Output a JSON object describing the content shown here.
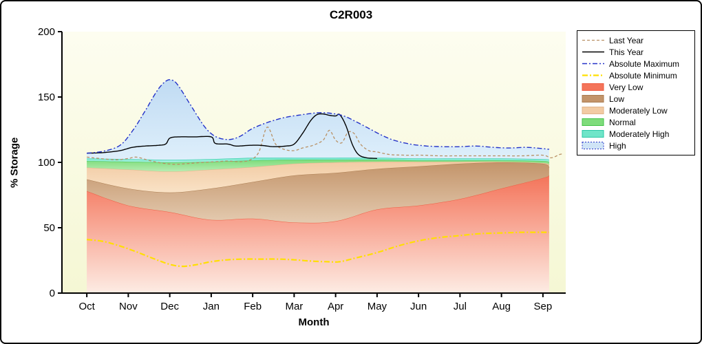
{
  "chart_data": {
    "type": "area",
    "title": "C2R003",
    "xlabel": "Month",
    "ylabel": "% Storage",
    "ylim": [
      0,
      200
    ],
    "yticks": [
      0,
      50,
      100,
      150,
      200
    ],
    "categories": [
      "Oct",
      "Nov",
      "Dec",
      "Jan",
      "Feb",
      "Mar",
      "Apr",
      "May",
      "Jun",
      "Jul",
      "Aug",
      "Sep"
    ],
    "x_domain": [
      -0.6,
      11.55
    ],
    "plot_bg_top": "#fdfdf0",
    "plot_bg_bottom": "#f5f7d4",
    "bands_x": [
      0,
      1,
      2,
      3,
      4,
      5,
      6,
      7,
      8,
      9,
      10,
      11,
      11.15
    ],
    "bands": [
      {
        "label": "Very Low",
        "fill_top": "#f4745a",
        "fill_bottom": "#fdece4",
        "edge": "#ee5b40",
        "upper": [
          78,
          67,
          62,
          56,
          57,
          54,
          55,
          64,
          67,
          72,
          80,
          88,
          90
        ]
      },
      {
        "label": "Low",
        "fill_top": "#c3946a",
        "fill_bottom": "#e4cbb0",
        "edge": "#aa7c50",
        "upper": [
          87,
          80,
          77,
          80,
          85,
          90,
          92,
          95,
          97,
          99,
          100,
          99,
          96
        ]
      },
      {
        "label": "Moderately Low",
        "fill_top": "#f2cba4",
        "fill_bottom": "#f9e2c6",
        "edge": "#e2b48a",
        "upper": [
          96,
          94.5,
          93,
          94.5,
          96.5,
          99,
          100,
          100.5,
          100.5,
          100.5,
          100.5,
          99.5,
          98
        ]
      },
      {
        "label": "Normal",
        "fill_top": "#7edc7b",
        "fill_bottom": "#b7edb2",
        "edge": "#43c247",
        "upper": [
          101,
          100.5,
          100,
          100.5,
          101.5,
          102,
          102,
          102,
          101.5,
          101.5,
          101.5,
          101,
          100
        ]
      },
      {
        "label": "Moderately High",
        "fill_top": "#6fe5c8",
        "fill_bottom": "#abf1e1",
        "edge": "#2ac8a6",
        "upper": [
          103,
          102.5,
          102,
          102.5,
          103.5,
          103.5,
          103.5,
          103.5,
          103,
          103,
          103,
          102.5,
          102
        ]
      },
      {
        "label": "High",
        "fill_top": "#c0dbf3",
        "fill_bottom": "#deeffb",
        "edge": "",
        "upper_from_line": "Absolute Maximum"
      }
    ],
    "lines": [
      {
        "name": "Last Year",
        "color": "#b99064",
        "width": 1.3,
        "dash": "4 3",
        "points": [
          [
            0,
            104
          ],
          [
            0.3,
            103
          ],
          [
            0.7,
            102
          ],
          [
            1,
            103
          ],
          [
            1.2,
            104
          ],
          [
            1.5,
            101.5
          ],
          [
            1.8,
            99.5
          ],
          [
            2.1,
            98.5
          ],
          [
            2.4,
            99
          ],
          [
            2.8,
            100
          ],
          [
            3.1,
            100.5
          ],
          [
            3.4,
            101
          ],
          [
            3.7,
            100.5
          ],
          [
            3.95,
            102
          ],
          [
            4.15,
            108
          ],
          [
            4.35,
            127
          ],
          [
            4.55,
            114
          ],
          [
            4.75,
            110
          ],
          [
            5,
            109
          ],
          [
            5.2,
            111
          ],
          [
            5.45,
            113
          ],
          [
            5.7,
            117
          ],
          [
            5.85,
            124.5
          ],
          [
            6,
            117
          ],
          [
            6.15,
            115
          ],
          [
            6.3,
            123
          ],
          [
            6.45,
            122
          ],
          [
            6.6,
            114
          ],
          [
            6.8,
            109
          ],
          [
            7,
            108
          ],
          [
            7.3,
            106
          ],
          [
            7.7,
            105.5
          ],
          [
            8.1,
            105.5
          ],
          [
            8.5,
            105
          ],
          [
            9,
            105
          ],
          [
            9.5,
            105
          ],
          [
            10,
            105
          ],
          [
            10.5,
            105
          ],
          [
            11,
            105.5
          ],
          [
            11.2,
            103.5
          ],
          [
            11.4,
            106
          ],
          [
            11.5,
            106.5
          ]
        ]
      },
      {
        "name": "This Year",
        "color": "#000000",
        "width": 1.4,
        "dash": "",
        "points": [
          [
            0,
            107
          ],
          [
            0.4,
            107.5
          ],
          [
            0.8,
            109
          ],
          [
            1.1,
            111.5
          ],
          [
            1.4,
            112.5
          ],
          [
            1.7,
            113
          ],
          [
            1.9,
            114
          ],
          [
            2,
            118.5
          ],
          [
            2.2,
            119.5
          ],
          [
            2.6,
            119.5
          ],
          [
            3,
            119.5
          ],
          [
            3.1,
            114.5
          ],
          [
            3.4,
            114
          ],
          [
            3.6,
            112.5
          ],
          [
            3.9,
            113
          ],
          [
            4.2,
            113
          ],
          [
            4.5,
            112
          ],
          [
            4.8,
            112.5
          ],
          [
            5,
            114
          ],
          [
            5.2,
            122
          ],
          [
            5.4,
            132
          ],
          [
            5.55,
            136.5
          ],
          [
            5.7,
            137
          ],
          [
            5.85,
            136
          ],
          [
            6,
            135.5
          ],
          [
            6.1,
            136.5
          ],
          [
            6.25,
            128
          ],
          [
            6.4,
            114
          ],
          [
            6.55,
            106
          ],
          [
            6.75,
            103.5
          ],
          [
            7,
            103
          ]
        ]
      },
      {
        "name": "Absolute Maximum",
        "color": "#2331c8",
        "width": 1.4,
        "dash": "7 3 2 3",
        "points": [
          [
            0,
            107
          ],
          [
            0.4,
            108.5
          ],
          [
            0.8,
            113
          ],
          [
            1.1,
            124
          ],
          [
            1.4,
            139
          ],
          [
            1.7,
            155
          ],
          [
            1.9,
            162
          ],
          [
            2.05,
            163
          ],
          [
            2.2,
            159
          ],
          [
            2.5,
            144
          ],
          [
            2.8,
            129
          ],
          [
            3,
            122
          ],
          [
            3.2,
            118.5
          ],
          [
            3.45,
            117.5
          ],
          [
            3.7,
            120
          ],
          [
            4,
            126
          ],
          [
            4.4,
            131
          ],
          [
            4.8,
            134.5
          ],
          [
            5.2,
            136.5
          ],
          [
            5.6,
            138
          ],
          [
            5.9,
            137.5
          ],
          [
            6.2,
            135.5
          ],
          [
            6.5,
            131
          ],
          [
            6.8,
            126
          ],
          [
            7.1,
            121
          ],
          [
            7.4,
            117
          ],
          [
            7.8,
            114
          ],
          [
            8.2,
            112.5
          ],
          [
            8.6,
            112
          ],
          [
            9,
            112
          ],
          [
            9.4,
            112.5
          ],
          [
            9.8,
            111.5
          ],
          [
            10.2,
            111
          ],
          [
            10.6,
            111.5
          ],
          [
            11,
            110.5
          ],
          [
            11.15,
            110
          ]
        ]
      },
      {
        "name": "Absolute Minimum",
        "color": "#ffdf00",
        "width": 2.2,
        "dash": "8 3 2 3",
        "points": [
          [
            0,
            41
          ],
          [
            0.4,
            39.5
          ],
          [
            0.8,
            36
          ],
          [
            1.2,
            31.5
          ],
          [
            1.6,
            26.5
          ],
          [
            2,
            22
          ],
          [
            2.3,
            20.5
          ],
          [
            2.6,
            21.5
          ],
          [
            3,
            24
          ],
          [
            3.4,
            25.5
          ],
          [
            3.8,
            26
          ],
          [
            4.2,
            26
          ],
          [
            4.6,
            26
          ],
          [
            5,
            25.5
          ],
          [
            5.4,
            24.5
          ],
          [
            5.8,
            24
          ],
          [
            6.1,
            24
          ],
          [
            6.5,
            27
          ],
          [
            7,
            31
          ],
          [
            7.5,
            36
          ],
          [
            8,
            40
          ],
          [
            8.5,
            42.5
          ],
          [
            9,
            44
          ],
          [
            9.5,
            45.5
          ],
          [
            10,
            46
          ],
          [
            10.5,
            46.5
          ],
          [
            11,
            46.5
          ],
          [
            11.15,
            46.5
          ]
        ]
      }
    ],
    "legend": [
      {
        "label": "Last Year",
        "marker": "line",
        "color": "#b99064",
        "dash": "4 3",
        "lw": 1.3
      },
      {
        "label": "This Year",
        "marker": "line",
        "color": "#000000",
        "dash": "",
        "lw": 1.4
      },
      {
        "label": "Absolute Maximum",
        "marker": "line",
        "color": "#2331c8",
        "dash": "7 3 2 3",
        "lw": 1.4
      },
      {
        "label": "Absolute Minimum",
        "marker": "line",
        "color": "#ffdf00",
        "dash": "8 3 2 3",
        "lw": 2.2
      },
      {
        "label": "Very Low",
        "marker": "box",
        "fill": "#f4745a",
        "border": "#ee5b40"
      },
      {
        "label": "Low",
        "marker": "box",
        "fill": "#c3946a",
        "border": "#aa7c50"
      },
      {
        "label": "Moderately Low",
        "marker": "box",
        "fill": "#f2cba4",
        "border": "#e2b48a"
      },
      {
        "label": "Normal",
        "marker": "box",
        "fill": "#7edc7b",
        "border": "#43c247"
      },
      {
        "label": "Moderately High",
        "marker": "box",
        "fill": "#6fe5c8",
        "border": "#2ac8a6"
      },
      {
        "label": "High",
        "marker": "box",
        "fill": "#cfe4f6",
        "border": "#2331c8",
        "border_dash": "2 2"
      }
    ]
  }
}
